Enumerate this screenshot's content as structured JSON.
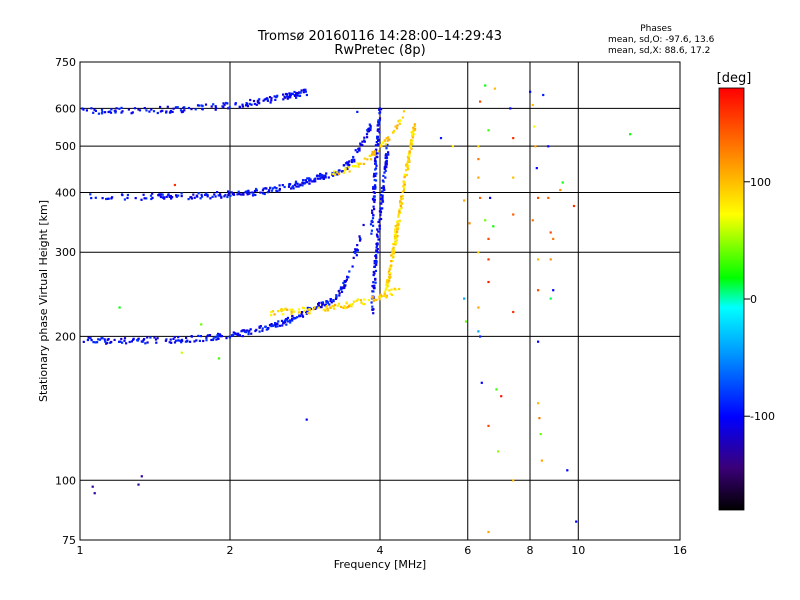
{
  "chart_data": {
    "type": "scatter",
    "title": "Tromsø 20160116 14:28:00–14:29:43",
    "subtitle": "RwPretec (8p)",
    "xlabel": "Frequency [MHz]",
    "ylabel": "Stationary phase Virtual Height [km]",
    "x_scale": "log2",
    "y_scale": "log",
    "xlim": [
      1,
      16
    ],
    "ylim": [
      75,
      750
    ],
    "x_ticks": [
      1,
      2,
      4,
      6,
      8,
      10,
      16
    ],
    "y_ticks": [
      75,
      100,
      200,
      300,
      400,
      500,
      600,
      750
    ],
    "grid": true,
    "phase_stats": {
      "heading": "Phases",
      "line_o": "mean, sd,O: -97.6, 13.6",
      "line_x": "mean, sd,X:  88.6, 17.2"
    },
    "colorbar": {
      "label": "[deg]",
      "range": [
        -180,
        180
      ],
      "ticks": [
        100,
        0,
        -100
      ]
    },
    "series": [
      {
        "traces": [
          {
            "x0": 1.0,
            "x1": 2.85,
            "h0": 592,
            "h1": 650,
            "power": 2.0,
            "phase": -100,
            "n": 160
          },
          {
            "x0": 1.0,
            "x1": 3.0,
            "h0": 392,
            "h1": 430,
            "power": 3.0,
            "phase": -100,
            "n": 170
          },
          {
            "x0": 3.0,
            "x1": 3.85,
            "h0": 432,
            "h1": 560,
            "power": 2.5,
            "phase": -100,
            "n": 80
          },
          {
            "x0": 3.85,
            "x1": 4.0,
            "h0": 330,
            "h1": 600,
            "power": 1.0,
            "phase": -100,
            "n": 90
          },
          {
            "x0": 3.85,
            "x1": 4.15,
            "h0": 220,
            "h1": 500,
            "power": 1.0,
            "phase": -100,
            "n": 120
          },
          {
            "x0": 1.0,
            "x1": 3.0,
            "h0": 196,
            "h1": 232,
            "power": 2.8,
            "phase": -100,
            "n": 200
          },
          {
            "x0": 3.0,
            "x1": 3.7,
            "h0": 232,
            "h1": 340,
            "power": 2.5,
            "phase": -100,
            "n": 70
          }
        ]
      },
      {
        "traces": [
          {
            "x0": 3.2,
            "x1": 4.5,
            "h0": 440,
            "h1": 590,
            "power": 2.0,
            "phase": 90,
            "n": 60
          },
          {
            "x0": 2.4,
            "x1": 4.35,
            "h0": 225,
            "h1": 250,
            "power": 1.8,
            "phase": 90,
            "n": 90
          },
          {
            "x0": 4.1,
            "x1": 4.7,
            "h0": 250,
            "h1": 560,
            "power": 1.3,
            "phase": 90,
            "n": 180
          }
        ]
      }
    ],
    "scattered_points": [
      {
        "x": 1.06,
        "y": 97,
        "phase": -130
      },
      {
        "x": 1.07,
        "y": 94,
        "phase": -130
      },
      {
        "x": 1.31,
        "y": 98,
        "phase": -130
      },
      {
        "x": 1.33,
        "y": 102,
        "phase": -130
      },
      {
        "x": 2.85,
        "y": 134,
        "phase": -100
      },
      {
        "x": 1.2,
        "y": 230,
        "phase": 20
      },
      {
        "x": 1.6,
        "y": 185,
        "phase": 60
      },
      {
        "x": 1.75,
        "y": 212,
        "phase": 40
      },
      {
        "x": 1.9,
        "y": 180,
        "phase": 30
      },
      {
        "x": 1.55,
        "y": 415,
        "phase": 160
      },
      {
        "x": 3.6,
        "y": 590,
        "phase": -90
      },
      {
        "x": 5.3,
        "y": 520,
        "phase": -90
      },
      {
        "x": 5.6,
        "y": 500,
        "phase": 80
      },
      {
        "x": 5.9,
        "y": 385,
        "phase": 110
      },
      {
        "x": 5.9,
        "y": 240,
        "phase": -40
      },
      {
        "x": 5.95,
        "y": 215,
        "phase": 40
      },
      {
        "x": 6.05,
        "y": 345,
        "phase": 120
      },
      {
        "x": 6.3,
        "y": 500,
        "phase": 90
      },
      {
        "x": 6.3,
        "y": 470,
        "phase": 130
      },
      {
        "x": 6.3,
        "y": 430,
        "phase": 110
      },
      {
        "x": 6.35,
        "y": 390,
        "phase": 140
      },
      {
        "x": 6.3,
        "y": 300,
        "phase": 90
      },
      {
        "x": 6.3,
        "y": 230,
        "phase": 110
      },
      {
        "x": 6.3,
        "y": 205,
        "phase": -40
      },
      {
        "x": 6.35,
        "y": 200,
        "phase": -90
      },
      {
        "x": 6.4,
        "y": 160,
        "phase": -100
      },
      {
        "x": 6.35,
        "y": 620,
        "phase": 150
      },
      {
        "x": 6.5,
        "y": 670,
        "phase": 20
      },
      {
        "x": 6.5,
        "y": 350,
        "phase": 40
      },
      {
        "x": 6.6,
        "y": 540,
        "phase": 30
      },
      {
        "x": 6.65,
        "y": 390,
        "phase": -110
      },
      {
        "x": 6.6,
        "y": 320,
        "phase": 150
      },
      {
        "x": 6.6,
        "y": 290,
        "phase": 160
      },
      {
        "x": 6.6,
        "y": 260,
        "phase": 170
      },
      {
        "x": 6.6,
        "y": 130,
        "phase": 150
      },
      {
        "x": 6.6,
        "y": 78,
        "phase": 110
      },
      {
        "x": 6.75,
        "y": 340,
        "phase": 20
      },
      {
        "x": 6.8,
        "y": 660,
        "phase": 100
      },
      {
        "x": 6.85,
        "y": 155,
        "phase": 30
      },
      {
        "x": 7.0,
        "y": 150,
        "phase": 170
      },
      {
        "x": 6.9,
        "y": 115,
        "phase": 50
      },
      {
        "x": 7.3,
        "y": 600,
        "phase": -100
      },
      {
        "x": 7.4,
        "y": 520,
        "phase": 160
      },
      {
        "x": 7.4,
        "y": 430,
        "phase": 100
      },
      {
        "x": 7.4,
        "y": 360,
        "phase": 140
      },
      {
        "x": 7.4,
        "y": 225,
        "phase": 160
      },
      {
        "x": 7.4,
        "y": 100,
        "phase": 100
      },
      {
        "x": 8.0,
        "y": 650,
        "phase": -100
      },
      {
        "x": 8.1,
        "y": 610,
        "phase": 100
      },
      {
        "x": 8.15,
        "y": 550,
        "phase": 70
      },
      {
        "x": 8.2,
        "y": 500,
        "phase": 110
      },
      {
        "x": 8.25,
        "y": 450,
        "phase": -100
      },
      {
        "x": 8.3,
        "y": 390,
        "phase": 150
      },
      {
        "x": 8.1,
        "y": 350,
        "phase": 130
      },
      {
        "x": 8.3,
        "y": 290,
        "phase": 100
      },
      {
        "x": 8.3,
        "y": 250,
        "phase": 150
      },
      {
        "x": 8.3,
        "y": 195,
        "phase": -100
      },
      {
        "x": 8.3,
        "y": 145,
        "phase": 100
      },
      {
        "x": 8.35,
        "y": 135,
        "phase": 130
      },
      {
        "x": 8.4,
        "y": 125,
        "phase": 40
      },
      {
        "x": 8.45,
        "y": 110,
        "phase": 110
      },
      {
        "x": 8.5,
        "y": 640,
        "phase": -90
      },
      {
        "x": 8.7,
        "y": 500,
        "phase": -100
      },
      {
        "x": 8.7,
        "y": 390,
        "phase": 140
      },
      {
        "x": 8.8,
        "y": 330,
        "phase": 150
      },
      {
        "x": 8.9,
        "y": 320,
        "phase": 130
      },
      {
        "x": 8.8,
        "y": 290,
        "phase": 120
      },
      {
        "x": 8.8,
        "y": 240,
        "phase": 10
      },
      {
        "x": 8.9,
        "y": 250,
        "phase": -100
      },
      {
        "x": 9.2,
        "y": 405,
        "phase": 120
      },
      {
        "x": 9.3,
        "y": 420,
        "phase": 20
      },
      {
        "x": 9.5,
        "y": 105,
        "phase": -100
      },
      {
        "x": 9.8,
        "y": 375,
        "phase": 160
      },
      {
        "x": 9.9,
        "y": 82,
        "phase": -100
      },
      {
        "x": 12.7,
        "y": 530,
        "phase": 20
      }
    ]
  }
}
